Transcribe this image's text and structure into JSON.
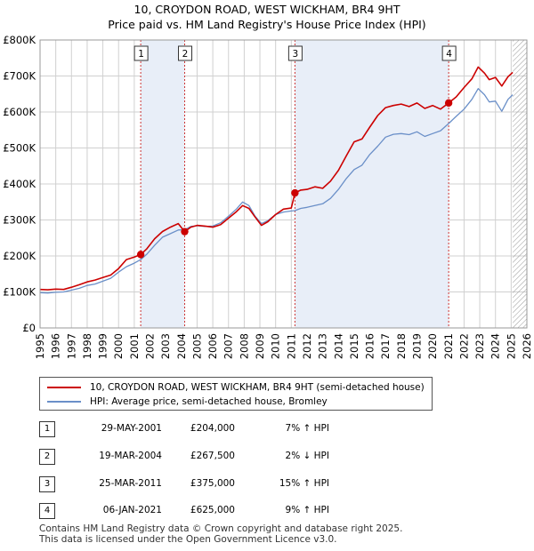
{
  "header": {
    "title_line1": "10, CROYDON ROAD, WEST WICKHAM, BR4 9HT",
    "title_line2": "Price paid vs. HM Land Registry's House Price Index (HPI)"
  },
  "colors": {
    "property": "#cc0000",
    "hpi": "#6a8fc8",
    "shade": "#e8eef8",
    "grid": "#d0d0d0",
    "vline": "#cc3333"
  },
  "chart_data": {
    "type": "line",
    "title": "10, CROYDON ROAD, WEST WICKHAM, BR4 9HT",
    "subtitle": "Price paid vs. HM Land Registry's House Price Index (HPI)",
    "xlim": [
      1995,
      2026
    ],
    "ylim": [
      0,
      800000
    ],
    "x_ticks": [
      "1995",
      "1996",
      "1997",
      "1998",
      "1999",
      "2000",
      "2001",
      "2002",
      "2003",
      "2004",
      "2005",
      "2006",
      "2007",
      "2008",
      "2009",
      "2010",
      "2011",
      "2012",
      "2013",
      "2014",
      "2015",
      "2016",
      "2017",
      "2018",
      "2019",
      "2020",
      "2021",
      "2022",
      "2023",
      "2024",
      "2025",
      "2026"
    ],
    "y_ticks": [
      {
        "value": 0,
        "label": "£0"
      },
      {
        "value": 100000,
        "label": "£100K"
      },
      {
        "value": 200000,
        "label": "£200K"
      },
      {
        "value": 300000,
        "label": "£300K"
      },
      {
        "value": 400000,
        "label": "£400K"
      },
      {
        "value": 500000,
        "label": "£500K"
      },
      {
        "value": 600000,
        "label": "£600K"
      },
      {
        "value": 700000,
        "label": "£700K"
      },
      {
        "value": 800000,
        "label": "£800K"
      }
    ],
    "grid": true,
    "shaded_ranges": [
      [
        2001.41,
        2004.21
      ],
      [
        2011.23,
        2021.02
      ]
    ],
    "future_hatch_from": 2025.1,
    "series": [
      {
        "name": "10, CROYDON ROAD, WEST WICKHAM, BR4 9HT (semi-detached house)",
        "color": "#cc0000",
        "points": [
          [
            1995.0,
            107000
          ],
          [
            1995.5,
            106000
          ],
          [
            1996.0,
            108000
          ],
          [
            1996.5,
            107000
          ],
          [
            1997.0,
            113000
          ],
          [
            1997.5,
            120000
          ],
          [
            1998.0,
            128000
          ],
          [
            1998.5,
            133000
          ],
          [
            1999.0,
            140000
          ],
          [
            1999.5,
            147000
          ],
          [
            2000.0,
            165000
          ],
          [
            2000.5,
            190000
          ],
          [
            2001.0,
            197000
          ],
          [
            2001.41,
            204000
          ],
          [
            2001.8,
            220000
          ],
          [
            2002.3,
            248000
          ],
          [
            2002.8,
            268000
          ],
          [
            2003.3,
            280000
          ],
          [
            2003.8,
            290000
          ],
          [
            2004.21,
            267500
          ],
          [
            2004.6,
            280000
          ],
          [
            2005.0,
            285000
          ],
          [
            2005.5,
            283000
          ],
          [
            2006.0,
            280000
          ],
          [
            2006.5,
            287000
          ],
          [
            2007.0,
            305000
          ],
          [
            2007.5,
            323000
          ],
          [
            2007.9,
            340000
          ],
          [
            2008.3,
            332000
          ],
          [
            2008.7,
            308000
          ],
          [
            2009.1,
            285000
          ],
          [
            2009.5,
            295000
          ],
          [
            2010.0,
            315000
          ],
          [
            2010.5,
            330000
          ],
          [
            2011.0,
            333000
          ],
          [
            2011.23,
            375000
          ],
          [
            2011.6,
            383000
          ],
          [
            2012.0,
            385000
          ],
          [
            2012.5,
            392000
          ],
          [
            2013.0,
            388000
          ],
          [
            2013.5,
            408000
          ],
          [
            2014.0,
            438000
          ],
          [
            2014.5,
            478000
          ],
          [
            2015.0,
            517000
          ],
          [
            2015.5,
            525000
          ],
          [
            2016.0,
            558000
          ],
          [
            2016.5,
            590000
          ],
          [
            2017.0,
            612000
          ],
          [
            2017.5,
            618000
          ],
          [
            2018.0,
            622000
          ],
          [
            2018.5,
            615000
          ],
          [
            2019.0,
            625000
          ],
          [
            2019.5,
            610000
          ],
          [
            2020.0,
            618000
          ],
          [
            2020.5,
            608000
          ],
          [
            2021.02,
            625000
          ],
          [
            2021.5,
            642000
          ],
          [
            2022.0,
            668000
          ],
          [
            2022.5,
            692000
          ],
          [
            2022.9,
            725000
          ],
          [
            2023.3,
            708000
          ],
          [
            2023.6,
            690000
          ],
          [
            2024.0,
            696000
          ],
          [
            2024.4,
            672000
          ],
          [
            2024.8,
            698000
          ],
          [
            2025.1,
            710000
          ]
        ]
      },
      {
        "name": "HPI: Average price, semi-detached house, Bromley",
        "color": "#6a8fc8",
        "points": [
          [
            1995.0,
            98000
          ],
          [
            1995.5,
            97000
          ],
          [
            1996.0,
            99000
          ],
          [
            1996.5,
            100000
          ],
          [
            1997.0,
            105000
          ],
          [
            1997.5,
            110000
          ],
          [
            1998.0,
            118000
          ],
          [
            1998.5,
            122000
          ],
          [
            1999.0,
            130000
          ],
          [
            1999.5,
            138000
          ],
          [
            2000.0,
            155000
          ],
          [
            2000.5,
            170000
          ],
          [
            2001.0,
            180000
          ],
          [
            2001.41,
            190000
          ],
          [
            2001.8,
            205000
          ],
          [
            2002.3,
            230000
          ],
          [
            2002.8,
            252000
          ],
          [
            2003.3,
            262000
          ],
          [
            2003.8,
            272000
          ],
          [
            2004.21,
            273000
          ],
          [
            2004.6,
            282000
          ],
          [
            2005.0,
            284000
          ],
          [
            2005.5,
            282000
          ],
          [
            2006.0,
            283000
          ],
          [
            2006.5,
            292000
          ],
          [
            2007.0,
            310000
          ],
          [
            2007.5,
            330000
          ],
          [
            2007.9,
            350000
          ],
          [
            2008.3,
            340000
          ],
          [
            2008.7,
            310000
          ],
          [
            2009.1,
            290000
          ],
          [
            2009.5,
            298000
          ],
          [
            2010.0,
            315000
          ],
          [
            2010.5,
            322000
          ],
          [
            2011.0,
            325000
          ],
          [
            2011.23,
            326000
          ],
          [
            2011.6,
            332000
          ],
          [
            2012.0,
            335000
          ],
          [
            2012.5,
            340000
          ],
          [
            2013.0,
            345000
          ],
          [
            2013.5,
            360000
          ],
          [
            2014.0,
            385000
          ],
          [
            2014.5,
            415000
          ],
          [
            2015.0,
            440000
          ],
          [
            2015.5,
            452000
          ],
          [
            2016.0,
            482000
          ],
          [
            2016.5,
            505000
          ],
          [
            2017.0,
            530000
          ],
          [
            2017.5,
            538000
          ],
          [
            2018.0,
            540000
          ],
          [
            2018.5,
            537000
          ],
          [
            2019.0,
            545000
          ],
          [
            2019.5,
            532000
          ],
          [
            2020.0,
            540000
          ],
          [
            2020.5,
            548000
          ],
          [
            2021.02,
            568000
          ],
          [
            2021.5,
            588000
          ],
          [
            2022.0,
            608000
          ],
          [
            2022.5,
            635000
          ],
          [
            2022.9,
            665000
          ],
          [
            2023.3,
            648000
          ],
          [
            2023.6,
            628000
          ],
          [
            2024.0,
            630000
          ],
          [
            2024.4,
            602000
          ],
          [
            2024.8,
            635000
          ],
          [
            2025.1,
            648000
          ]
        ]
      }
    ],
    "annotations": [
      {
        "label": "1",
        "x": 2001.41,
        "value": 204000
      },
      {
        "label": "2",
        "x": 2004.21,
        "value": 267500
      },
      {
        "label": "3",
        "x": 2011.23,
        "value": 375000
      },
      {
        "label": "4",
        "x": 2021.02,
        "value": 625000
      }
    ]
  },
  "legend": [
    {
      "label": "10, CROYDON ROAD, WEST WICKHAM, BR4 9HT (semi-detached house)",
      "color": "#cc0000"
    },
    {
      "label": "HPI: Average price, semi-detached house, Bromley",
      "color": "#6a8fc8"
    }
  ],
  "transactions": [
    {
      "num": "1",
      "date": "29-MAY-2001",
      "price": "£204,000",
      "hpi": "7% ↑ HPI"
    },
    {
      "num": "2",
      "date": "19-MAR-2004",
      "price": "£267,500",
      "hpi": "2% ↓ HPI"
    },
    {
      "num": "3",
      "date": "25-MAR-2011",
      "price": "£375,000",
      "hpi": "15% ↑ HPI"
    },
    {
      "num": "4",
      "date": "06-JAN-2021",
      "price": "£625,000",
      "hpi": "9% ↑ HPI"
    }
  ],
  "footer": {
    "line1": "Contains HM Land Registry data © Crown copyright and database right 2025.",
    "line2": "This data is licensed under the Open Government Licence v3.0."
  }
}
